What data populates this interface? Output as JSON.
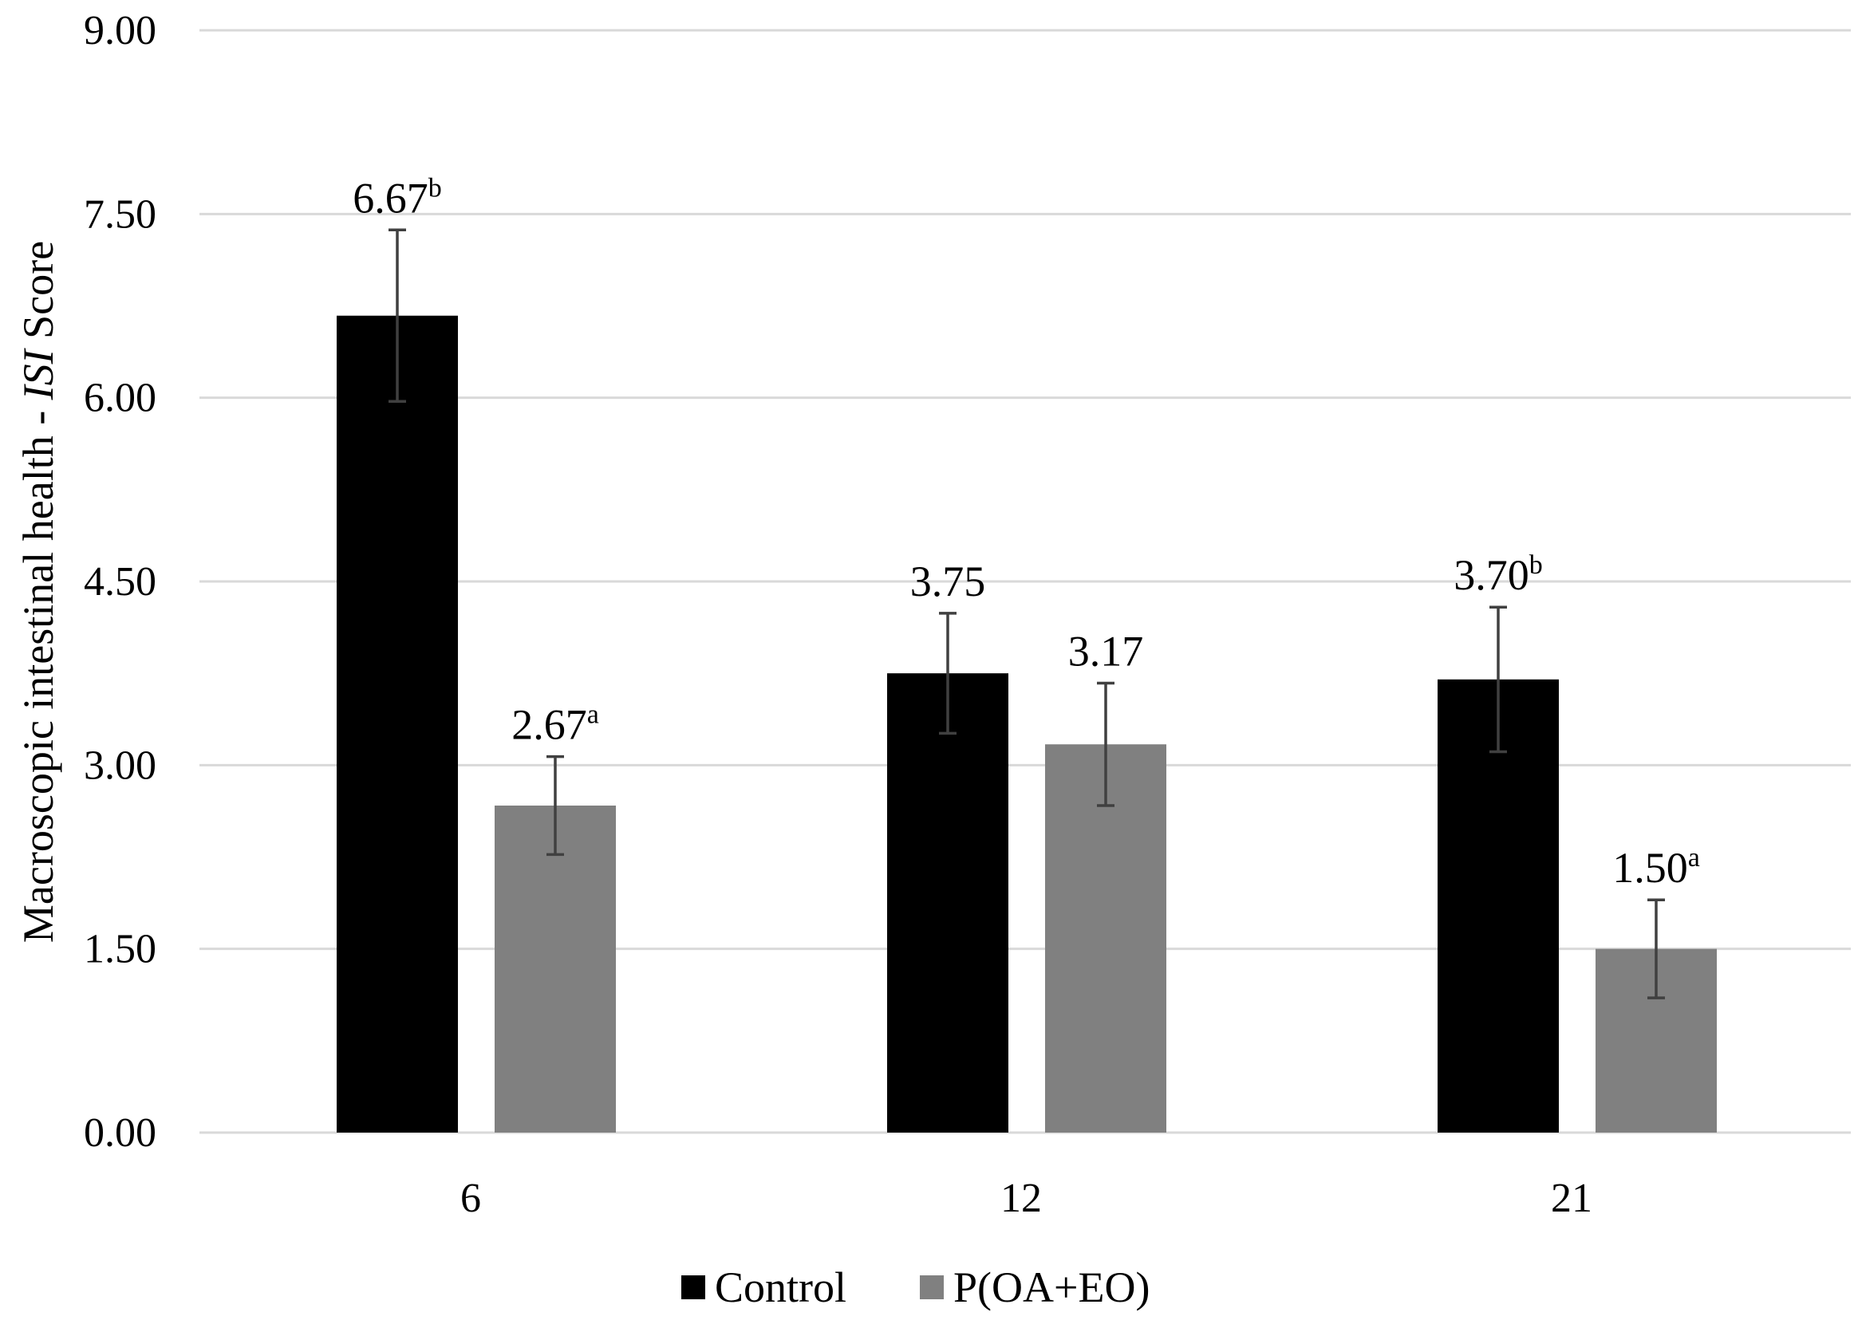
{
  "chart_data": {
    "type": "bar",
    "title": "",
    "xlabel": "",
    "ylabel": {
      "prefix": "Macroscopic intestinal health - ",
      "italic": "ISI",
      "suffix": " Score"
    },
    "ylim": [
      0,
      9
    ],
    "yticks": [
      "0.00",
      "1.50",
      "3.00",
      "4.50",
      "6.00",
      "7.50",
      "9.00"
    ],
    "grid": true,
    "categories": [
      "6",
      "12",
      "21"
    ],
    "series": [
      {
        "name": "Control",
        "color": "#000000",
        "values": [
          6.67,
          3.75,
          3.7
        ],
        "errors": [
          0.7,
          0.49,
          0.59
        ],
        "labels": [
          "6.67",
          "3.75",
          "3.70"
        ],
        "superscripts": [
          "b",
          "",
          "b"
        ]
      },
      {
        "name": "P(OA+EO)",
        "color": "#808080",
        "values": [
          2.67,
          3.17,
          1.5
        ],
        "errors": [
          0.4,
          0.5,
          0.4
        ],
        "labels": [
          "2.67",
          "3.17",
          "1.50"
        ],
        "superscripts": [
          "a",
          "",
          "a"
        ]
      }
    ],
    "error_bar_color": "#404040",
    "grid_color": "#d9d9d9",
    "legend_position": "bottom"
  }
}
